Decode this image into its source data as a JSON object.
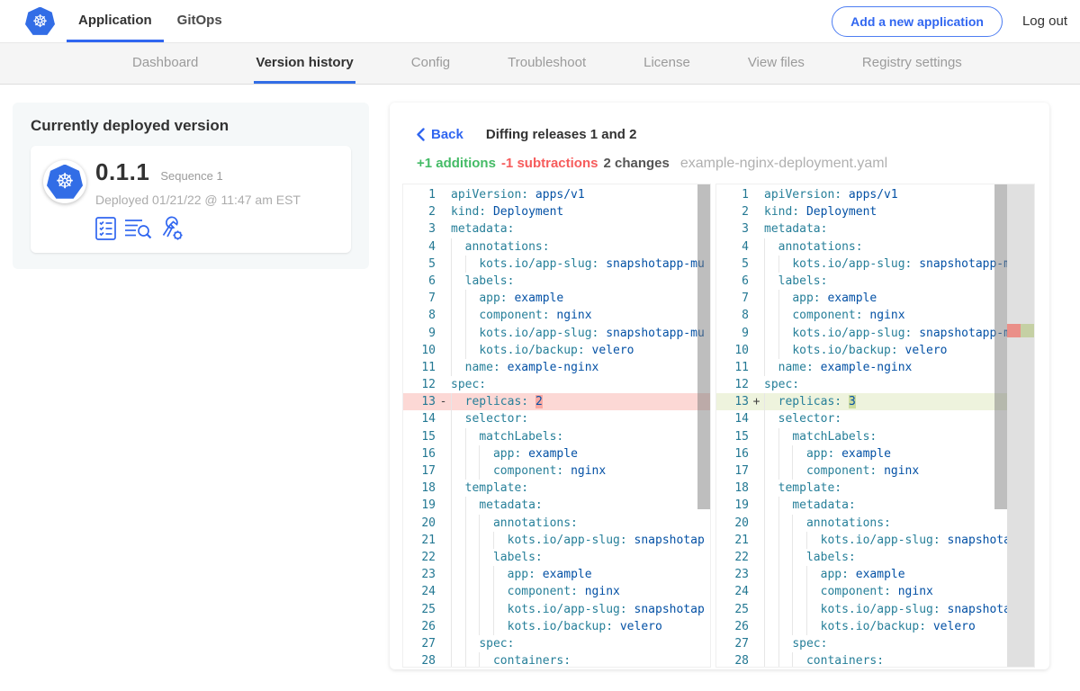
{
  "topnav": {
    "tabs": [
      {
        "label": "Application",
        "active": true
      },
      {
        "label": "GitOps",
        "active": false
      }
    ],
    "add_app_button": "Add a new application",
    "logout_label": "Log out"
  },
  "subnav": {
    "items": [
      {
        "label": "Dashboard",
        "active": false
      },
      {
        "label": "Version history",
        "active": true
      },
      {
        "label": "Config",
        "active": false
      },
      {
        "label": "Troubleshoot",
        "active": false
      },
      {
        "label": "License",
        "active": false
      },
      {
        "label": "View files",
        "active": false
      },
      {
        "label": "Registry settings",
        "active": false
      }
    ]
  },
  "deployed_card": {
    "title": "Currently deployed version",
    "version": "0.1.1",
    "sequence_label": "Sequence 1",
    "deployed_at": "Deployed 01/21/22 @ 11:47 am EST",
    "action_icons": [
      "preflight-checklist-icon",
      "deploy-logs-search-icon",
      "wrench-gear-icon"
    ]
  },
  "diff": {
    "back_label": "Back",
    "title": "Diffing releases 1 and 2",
    "additions_label": "+1 additions",
    "subtractions_label": "-1 subtractions",
    "changes_label": "2 changes",
    "filename": "example-nginx-deployment.yaml",
    "panes": {
      "left": {
        "lines": [
          [
            1,
            0,
            "apiVersion",
            "apps/v1",
            ""
          ],
          [
            2,
            0,
            "kind",
            "Deployment",
            ""
          ],
          [
            3,
            0,
            "metadata",
            "",
            ""
          ],
          [
            4,
            1,
            "annotations",
            "",
            ""
          ],
          [
            5,
            2,
            "kots.io/app-slug",
            "snapshotapp-mu",
            ""
          ],
          [
            6,
            1,
            "labels",
            "",
            ""
          ],
          [
            7,
            2,
            "app",
            "example",
            ""
          ],
          [
            8,
            2,
            "component",
            "nginx",
            ""
          ],
          [
            9,
            2,
            "kots.io/app-slug",
            "snapshotapp-mu",
            ""
          ],
          [
            10,
            2,
            "kots.io/backup",
            "velero",
            ""
          ],
          [
            11,
            1,
            "name",
            "example-nginx",
            ""
          ],
          [
            12,
            0,
            "spec",
            "",
            ""
          ],
          [
            13,
            1,
            "replicas",
            "2",
            "del"
          ],
          [
            14,
            1,
            "selector",
            "",
            ""
          ],
          [
            15,
            2,
            "matchLabels",
            "",
            ""
          ],
          [
            16,
            3,
            "app",
            "example",
            ""
          ],
          [
            17,
            3,
            "component",
            "nginx",
            ""
          ],
          [
            18,
            1,
            "template",
            "",
            ""
          ],
          [
            19,
            2,
            "metadata",
            "",
            ""
          ],
          [
            20,
            3,
            "annotations",
            "",
            ""
          ],
          [
            21,
            4,
            "kots.io/app-slug",
            "snapshotap",
            ""
          ],
          [
            22,
            3,
            "labels",
            "",
            ""
          ],
          [
            23,
            4,
            "app",
            "example",
            ""
          ],
          [
            24,
            4,
            "component",
            "nginx",
            ""
          ],
          [
            25,
            4,
            "kots.io/app-slug",
            "snapshotap",
            ""
          ],
          [
            26,
            4,
            "kots.io/backup",
            "velero",
            ""
          ],
          [
            27,
            2,
            "spec",
            "",
            ""
          ],
          [
            28,
            3,
            "containers",
            "",
            ""
          ]
        ]
      },
      "right": {
        "lines": [
          [
            1,
            0,
            "apiVersion",
            "apps/v1",
            ""
          ],
          [
            2,
            0,
            "kind",
            "Deployment",
            ""
          ],
          [
            3,
            0,
            "metadata",
            "",
            ""
          ],
          [
            4,
            1,
            "annotations",
            "",
            ""
          ],
          [
            5,
            2,
            "kots.io/app-slug",
            "snapshotapp-mu",
            ""
          ],
          [
            6,
            1,
            "labels",
            "",
            ""
          ],
          [
            7,
            2,
            "app",
            "example",
            ""
          ],
          [
            8,
            2,
            "component",
            "nginx",
            ""
          ],
          [
            9,
            2,
            "kots.io/app-slug",
            "snapshotapp-mu",
            ""
          ],
          [
            10,
            2,
            "kots.io/backup",
            "velero",
            ""
          ],
          [
            11,
            1,
            "name",
            "example-nginx",
            ""
          ],
          [
            12,
            0,
            "spec",
            "",
            ""
          ],
          [
            13,
            1,
            "replicas",
            "3",
            "add"
          ],
          [
            14,
            1,
            "selector",
            "",
            ""
          ],
          [
            15,
            2,
            "matchLabels",
            "",
            ""
          ],
          [
            16,
            3,
            "app",
            "example",
            ""
          ],
          [
            17,
            3,
            "component",
            "nginx",
            ""
          ],
          [
            18,
            1,
            "template",
            "",
            ""
          ],
          [
            19,
            2,
            "metadata",
            "",
            ""
          ],
          [
            20,
            3,
            "annotations",
            "",
            ""
          ],
          [
            21,
            4,
            "kots.io/app-slug",
            "snapshotap",
            ""
          ],
          [
            22,
            3,
            "labels",
            "",
            ""
          ],
          [
            23,
            4,
            "app",
            "example",
            ""
          ],
          [
            24,
            4,
            "component",
            "nginx",
            ""
          ],
          [
            25,
            4,
            "kots.io/app-slug",
            "snapshotap",
            ""
          ],
          [
            26,
            4,
            "kots.io/backup",
            "velero",
            ""
          ],
          [
            27,
            2,
            "spec",
            "",
            ""
          ],
          [
            28,
            3,
            "containers",
            "",
            ""
          ]
        ]
      }
    }
  },
  "icons": {
    "logo": "kubernetes-wheel-icon",
    "back": "chevron-left-icon"
  },
  "colors": {
    "accent_blue": "#3066f0",
    "k8s_blue": "#326de6",
    "additions_green": "#44bb66",
    "subtractions_red": "#f65c5c",
    "yaml_key": "#267f99",
    "yaml_value": "#0451a5",
    "line_number": "#237893",
    "deleted_line_bg": "#fcd8d5",
    "deleted_char_bg": "#f9a9a2",
    "added_line_bg": "#eef3dd",
    "added_char_bg": "#ccdc9f"
  }
}
